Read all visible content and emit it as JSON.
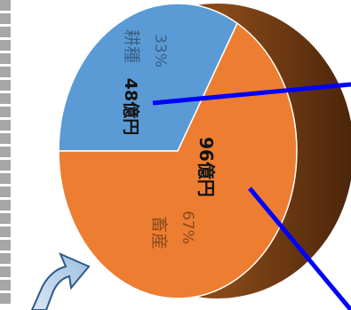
{
  "chart_data": {
    "type": "pie",
    "slices": [
      {
        "category": "耕種",
        "percent_label": "33%",
        "value_label": "48億円",
        "value": 48,
        "percent": 33,
        "color": "#5b9bd5"
      },
      {
        "category": "畜産",
        "percent_label": "67%",
        "value_label": "96億円",
        "value": 96,
        "percent": 67,
        "color": "#ed7d31"
      }
    ],
    "style": "3d-pie",
    "orientation": "rotated 90° clockwise",
    "side_color": "#6b3a14",
    "annotation_lines_color": "#0000ff",
    "arrow_color": "#2e5b8a"
  }
}
